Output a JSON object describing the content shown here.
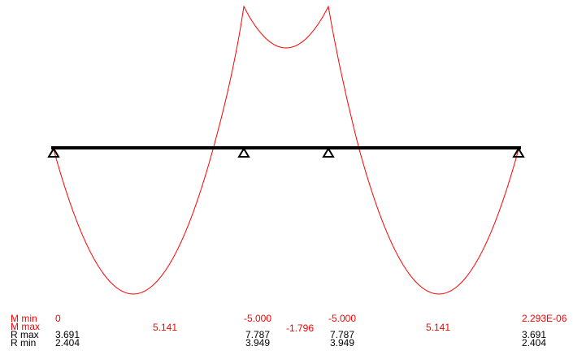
{
  "colors": {
    "moment": "#ff0000",
    "beam": "#000000",
    "text_black": "#000000",
    "background": "#ffffff"
  },
  "legend": {
    "m_min": "M min",
    "m_max": "M max",
    "r_max": "R max",
    "r_min": "R min"
  },
  "values": {
    "m_left": "0",
    "m_span1": "5.141",
    "m_support2": "-5.000",
    "m_span2": "-1.796",
    "m_support3": "-5.000",
    "m_span3": "5.141",
    "m_right": "2.293E-06",
    "r1_max": "3.691",
    "r1_min": "2.404",
    "r2_max": "7.787",
    "r2_min": "3.949",
    "r3_max": "7.787",
    "r3_min": "3.949",
    "r4_max": "3.691",
    "r4_min": "2.404"
  },
  "chart_data": {
    "type": "line",
    "description_free": true,
    "supports": [
      "support-1",
      "support-2",
      "support-3",
      "support-4"
    ],
    "series": [
      {
        "values": [
          0,
          5.141,
          -5.0,
          -1.796,
          -5.0,
          5.141,
          2.293e-06
        ]
      }
    ]
  }
}
